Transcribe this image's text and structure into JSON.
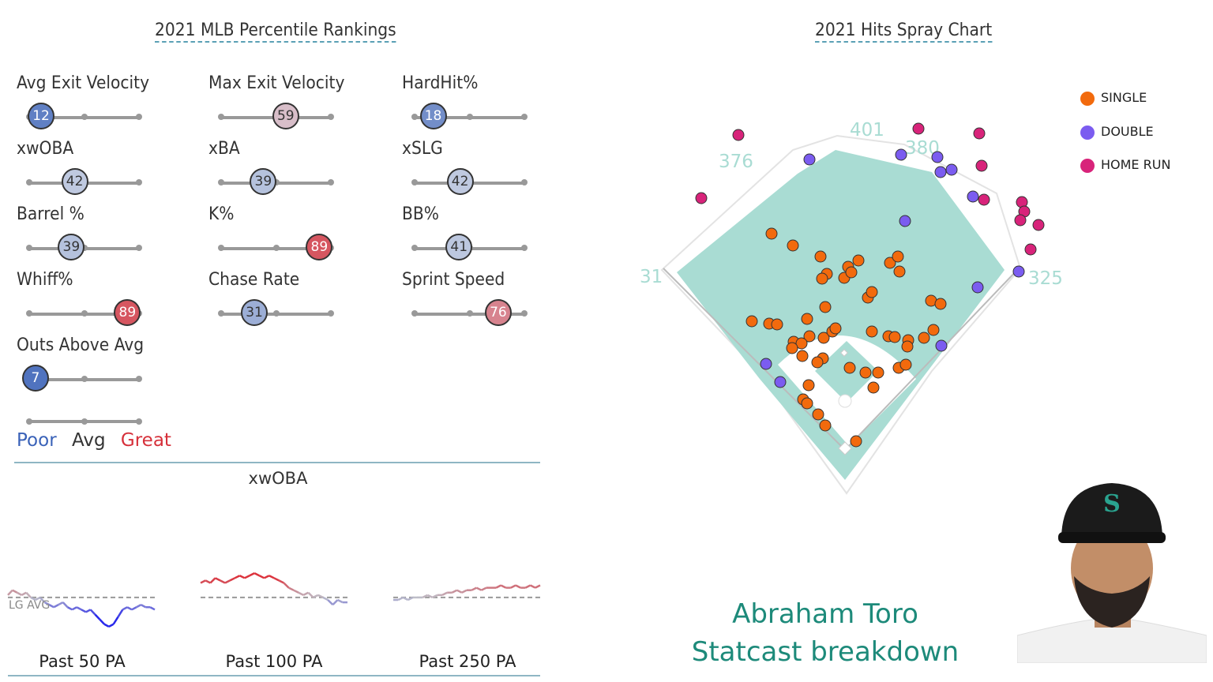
{
  "percentile": {
    "title": "2021 MLB Percentile Rankings",
    "metrics": [
      {
        "label": "Avg Exit Velocity",
        "value": "12",
        "pct": 12
      },
      {
        "label": "Max Exit Velocity",
        "value": "59",
        "pct": 59
      },
      {
        "label": "HardHit%",
        "value": "18",
        "pct": 18
      },
      {
        "label": "xwOBA",
        "value": "42",
        "pct": 42
      },
      {
        "label": "xBA",
        "value": "39",
        "pct": 39
      },
      {
        "label": "xSLG",
        "value": "42",
        "pct": 42
      },
      {
        "label": "Barrel %",
        "value": "39",
        "pct": 39
      },
      {
        "label": "K%",
        "value": "89",
        "pct": 89
      },
      {
        "label": "BB%",
        "value": "41",
        "pct": 41
      },
      {
        "label": "Whiff%",
        "value": "89",
        "pct": 89
      },
      {
        "label": "Chase Rate",
        "value": "31",
        "pct": 31
      },
      {
        "label": "Sprint Speed",
        "value": "76",
        "pct": 76
      },
      {
        "label": "Outs Above Avg",
        "value": "7",
        "pct": 7
      }
    ],
    "scale": {
      "poor": "Poor",
      "avg": "Avg",
      "great": "Great"
    },
    "colors": {
      "poor": "#3a62b8",
      "avg": "#d8dde8",
      "great": "#d6303a"
    }
  },
  "xwoba": {
    "title": "xwOBA",
    "lg_avg_label": "LG AVG",
    "panels": [
      {
        "label": "Past 50 PA",
        "values": [
          0.33,
          0.35,
          0.34,
          0.33,
          0.34,
          0.32,
          0.31,
          0.32,
          0.3,
          0.29,
          0.28,
          0.29,
          0.3,
          0.28,
          0.27,
          0.28,
          0.27,
          0.26,
          0.27,
          0.25,
          0.23,
          0.21,
          0.2,
          0.21,
          0.24,
          0.27,
          0.28,
          0.27,
          0.28,
          0.29,
          0.28,
          0.28,
          0.27
        ]
      },
      {
        "label": "Past 100 PA",
        "values": [
          0.38,
          0.39,
          0.38,
          0.4,
          0.39,
          0.38,
          0.39,
          0.4,
          0.41,
          0.4,
          0.41,
          0.42,
          0.41,
          0.4,
          0.41,
          0.4,
          0.39,
          0.38,
          0.36,
          0.35,
          0.34,
          0.33,
          0.34,
          0.32,
          0.33,
          0.32,
          0.31,
          0.29,
          0.31,
          0.3,
          0.3
        ]
      },
      {
        "label": "Past 250 PA",
        "values": [
          0.31,
          0.31,
          0.32,
          0.31,
          0.32,
          0.32,
          0.32,
          0.33,
          0.32,
          0.33,
          0.33,
          0.34,
          0.34,
          0.35,
          0.34,
          0.35,
          0.35,
          0.36,
          0.35,
          0.36,
          0.36,
          0.36,
          0.37,
          0.36,
          0.36,
          0.37,
          0.36,
          0.36,
          0.37,
          0.36,
          0.37
        ]
      }
    ],
    "lg_avg": 0.32
  },
  "spray": {
    "title": "2021 Hits Spray Chart",
    "fence_labels": [
      "376",
      "401",
      "380",
      "325",
      "31"
    ],
    "legend": [
      {
        "label": "SINGLE",
        "color": "#f26a0d"
      },
      {
        "label": "DOUBLE",
        "color": "#7b5cf0"
      },
      {
        "label": "HOME RUN",
        "color": "#d8237a"
      }
    ]
  },
  "chart_data": {
    "type": "scatter",
    "title": "2021 Hits Spray Chart",
    "series": [
      {
        "name": "SINGLE",
        "points": [
          [
            977,
            296
          ],
          [
            1004,
            311
          ],
          [
            1039,
            325
          ],
          [
            1047,
            347
          ],
          [
            1041,
            353
          ],
          [
            1069,
            352
          ],
          [
            1074,
            338
          ],
          [
            1087,
            330
          ],
          [
            1127,
            333
          ],
          [
            1137,
            325
          ],
          [
            1139,
            344
          ],
          [
            1099,
            377
          ],
          [
            1104,
            370
          ],
          [
            1045,
            389
          ],
          [
            1078,
            345
          ],
          [
            1179,
            381
          ],
          [
            1191,
            385
          ],
          [
            952,
            407
          ],
          [
            974,
            410
          ],
          [
            984,
            411
          ],
          [
            1022,
            404
          ],
          [
            1005,
            433
          ],
          [
            1025,
            426
          ],
          [
            1015,
            435
          ],
          [
            1003,
            441
          ],
          [
            1016,
            451
          ],
          [
            1043,
            428
          ],
          [
            1054,
            420
          ],
          [
            1058,
            416
          ],
          [
            1042,
            454
          ],
          [
            1035,
            459
          ],
          [
            1104,
            420
          ],
          [
            1125,
            426
          ],
          [
            1133,
            427
          ],
          [
            1150,
            431
          ],
          [
            1149,
            439
          ],
          [
            1170,
            428
          ],
          [
            1182,
            418
          ],
          [
            1076,
            466
          ],
          [
            1096,
            472
          ],
          [
            1112,
            472
          ],
          [
            1138,
            466
          ],
          [
            1147,
            462
          ],
          [
            1106,
            491
          ],
          [
            1024,
            488
          ],
          [
            1017,
            506
          ],
          [
            1022,
            511
          ],
          [
            1036,
            525
          ],
          [
            1045,
            539
          ],
          [
            1084,
            559
          ]
        ]
      },
      {
        "name": "DOUBLE",
        "points": [
          [
            1025,
            202
          ],
          [
            1141,
            196
          ],
          [
            1187,
            199
          ],
          [
            1191,
            218
          ],
          [
            1205,
            215
          ],
          [
            1232,
            249
          ],
          [
            1146,
            280
          ],
          [
            1290,
            344
          ],
          [
            1238,
            364
          ],
          [
            1192,
            438
          ],
          [
            970,
            461
          ],
          [
            988,
            484
          ]
        ]
      },
      {
        "name": "HOME RUN",
        "points": [
          [
            935,
            171
          ],
          [
            888,
            251
          ],
          [
            1163,
            163
          ],
          [
            1240,
            169
          ],
          [
            1243,
            210
          ],
          [
            1246,
            253
          ],
          [
            1294,
            256
          ],
          [
            1297,
            268
          ],
          [
            1292,
            279
          ],
          [
            1315,
            285
          ],
          [
            1305,
            316
          ]
        ]
      }
    ]
  },
  "player": {
    "name": "Abraham Toro",
    "subtitle": "Statcast breakdown",
    "cap_logo": "S"
  }
}
